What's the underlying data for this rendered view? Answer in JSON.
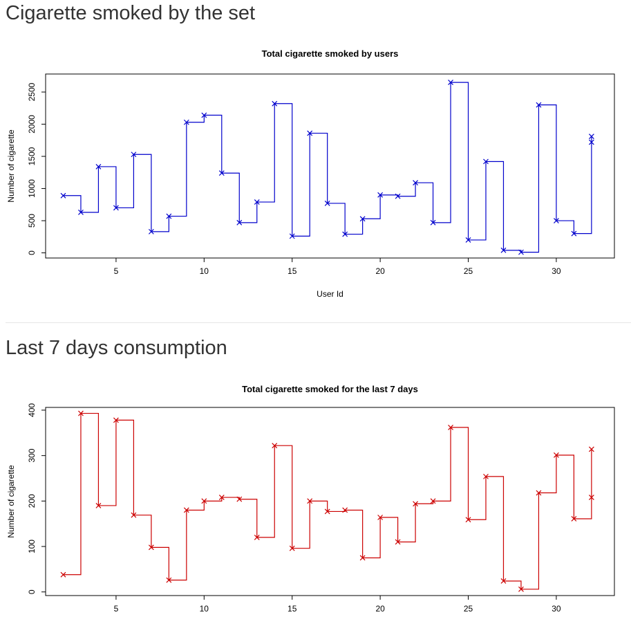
{
  "sections": [
    {
      "heading": "Cigarette smoked by the set"
    },
    {
      "heading": "Last 7 days consumption"
    }
  ],
  "chart_data": [
    {
      "type": "line",
      "style": "step",
      "title": "Total cigarette smoked by users",
      "xlabel": "User Id",
      "ylabel": "Number of cigarette",
      "xlim": [
        1,
        33.3
      ],
      "ylim": [
        -80,
        2780
      ],
      "xticks": [
        5,
        10,
        15,
        20,
        25,
        30
      ],
      "yticks": [
        0,
        500,
        1000,
        1500,
        2000,
        2500
      ],
      "grid": false,
      "color": "#0000cc",
      "marker": "x",
      "x": [
        2,
        3,
        4,
        5,
        6,
        7,
        8,
        9,
        10,
        11,
        12,
        13,
        14,
        15,
        16,
        17,
        18,
        19,
        20,
        21,
        22,
        23,
        24,
        25,
        26,
        27,
        28,
        29,
        30,
        31,
        32,
        32
      ],
      "y": [
        890,
        630,
        1340,
        700,
        1530,
        330,
        570,
        2030,
        2140,
        1240,
        470,
        790,
        2320,
        260,
        1860,
        770,
        290,
        530,
        900,
        880,
        1090,
        470,
        2650,
        200,
        1420,
        40,
        10,
        2300,
        500,
        300,
        1810,
        1720
      ]
    },
    {
      "type": "line",
      "style": "step",
      "title": "Total cigarette smoked for the last 7 days",
      "xlabel": "",
      "ylabel": "Number of cigarette",
      "xlim": [
        1,
        33.3
      ],
      "ylim": [
        -8,
        406
      ],
      "xticks": [
        5,
        10,
        15,
        20,
        25,
        30
      ],
      "yticks": [
        0,
        100,
        200,
        300,
        400
      ],
      "grid": false,
      "color": "#cc0000",
      "marker": "x",
      "x": [
        2,
        3,
        4,
        5,
        6,
        7,
        8,
        9,
        10,
        11,
        12,
        13,
        14,
        15,
        16,
        17,
        18,
        19,
        20,
        21,
        22,
        23,
        24,
        25,
        26,
        27,
        28,
        29,
        30,
        31,
        32,
        32
      ],
      "y": [
        38,
        393,
        190,
        378,
        169,
        98,
        26,
        180,
        200,
        208,
        204,
        120,
        322,
        96,
        200,
        177,
        180,
        75,
        164,
        110,
        194,
        200,
        362,
        159,
        254,
        24,
        6,
        218,
        301,
        161,
        314,
        208
      ]
    }
  ]
}
